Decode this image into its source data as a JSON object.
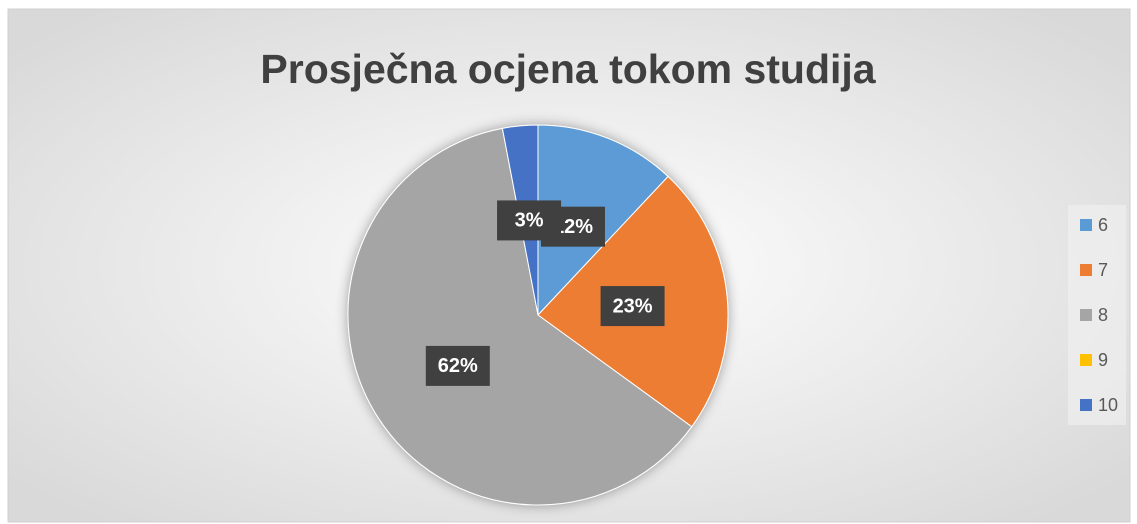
{
  "chart_data": {
    "type": "pie",
    "title": "Prosječna ocjena tokom studija",
    "categories": [
      "6",
      "7",
      "8",
      "9",
      "10"
    ],
    "values": [
      12,
      23,
      62,
      0,
      3
    ],
    "value_labels": [
      "12%",
      "23%",
      "62%",
      null,
      "3%"
    ],
    "colors": [
      "#5b9bd5",
      "#ed7d31",
      "#a5a5a5",
      "#ffc000",
      "#4472c4"
    ],
    "legend": "right"
  }
}
